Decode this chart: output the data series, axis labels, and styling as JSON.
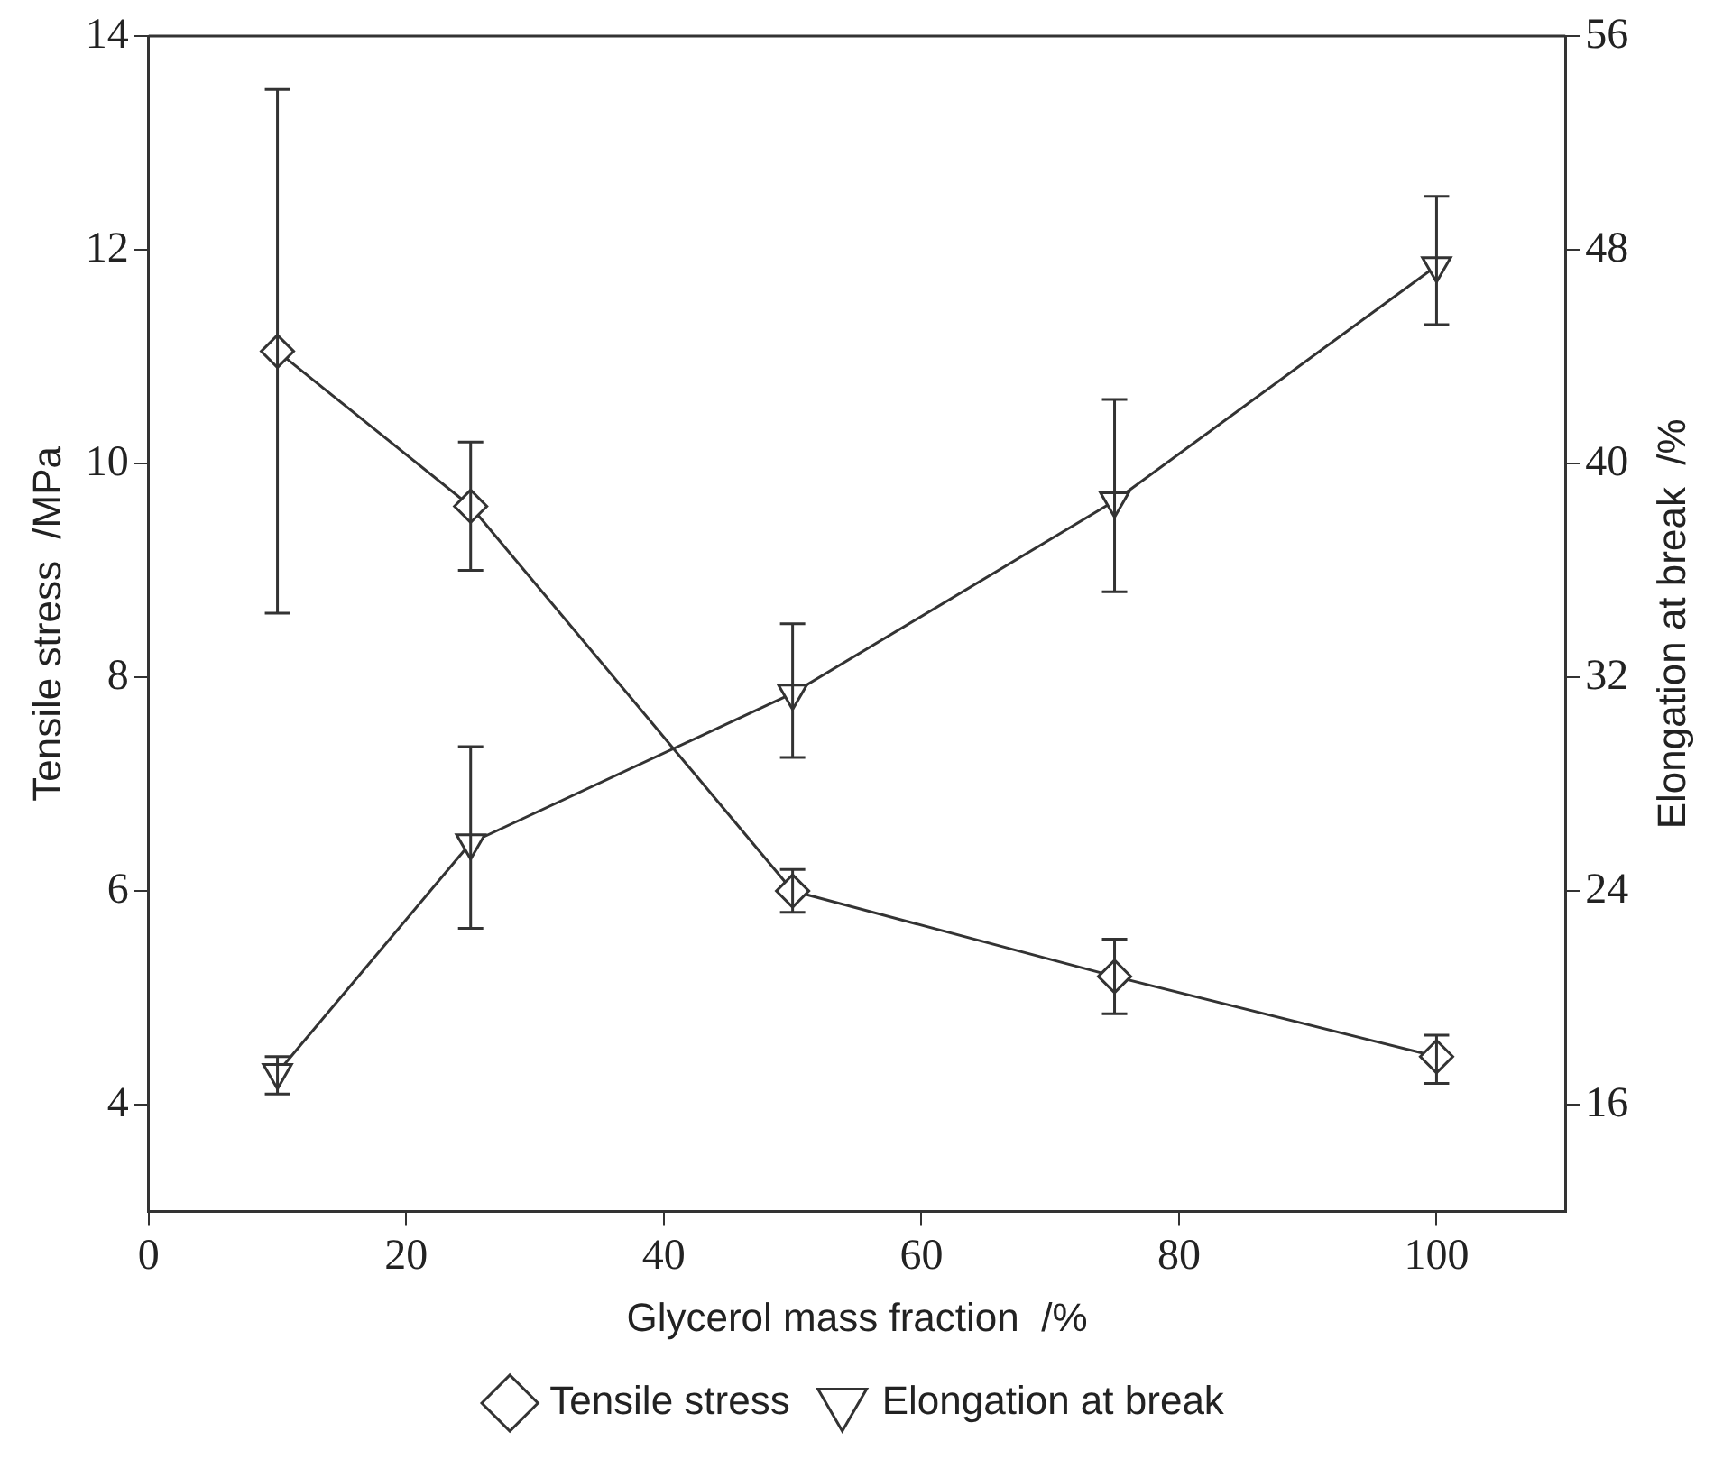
{
  "chart_data": {
    "type": "line",
    "xlabel": "Glycerol mass fraction  /%",
    "ylabel": "Tensile stress  /MPa",
    "y2label": "Elongation at break  /%",
    "x": [
      10,
      25,
      50,
      75,
      100
    ],
    "xlim": [
      0,
      110
    ],
    "xticks": [
      0,
      20,
      40,
      60,
      80,
      100
    ],
    "ylim": [
      3,
      14
    ],
    "yticks": [
      4,
      6,
      8,
      10,
      12,
      14
    ],
    "y2lim": [
      12,
      56
    ],
    "y2ticks": [
      16,
      24,
      32,
      40,
      48,
      56
    ],
    "grid": false,
    "legend": "bottom",
    "line_style": "solid",
    "series": [
      {
        "name": "Tensile stress",
        "color": "#333333",
        "marker": "diamond",
        "values": [
          11.05,
          9.6,
          6.0,
          5.2,
          4.45
        ],
        "errors": [
          [
            8.6,
            13.5
          ],
          [
            9.0,
            10.2
          ],
          [
            5.8,
            6.2
          ],
          [
            4.85,
            5.55
          ],
          [
            4.2,
            4.65
          ]
        ]
      },
      {
        "name": "Elongation at break",
        "color": "#333333",
        "marker": "triangle-down",
        "axis": "y2",
        "values": [
          17.2,
          25.8,
          31.4,
          38.6,
          47.4
        ],
        "errors": [
          [
            16.4,
            17.8
          ],
          [
            22.6,
            29.4
          ],
          [
            29,
            34
          ],
          [
            35.2,
            42.4
          ],
          [
            45.2,
            50
          ]
        ]
      }
    ]
  }
}
